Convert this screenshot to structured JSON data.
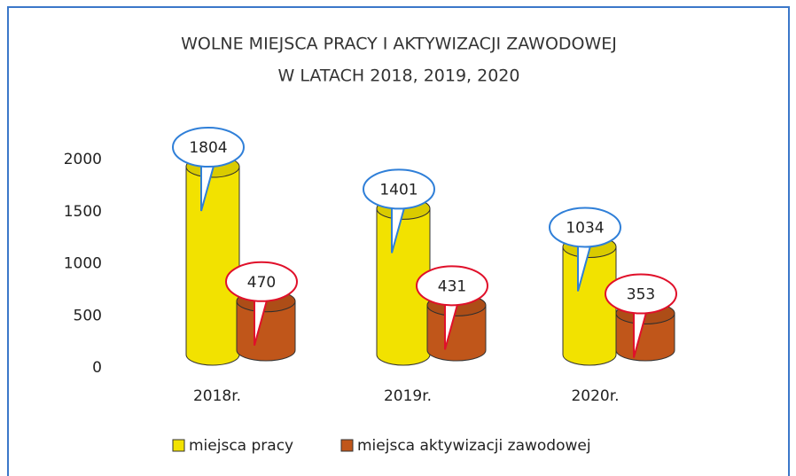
{
  "chart_data": {
    "type": "bar",
    "title": [
      "WOLNE MIEJSCA PRACY I AKTYWIZACJI ZAWODOWEJ",
      "W LATACH 2018, 2019, 2020"
    ],
    "categories": [
      "2018r.",
      "2019r.",
      "2020r."
    ],
    "series": [
      {
        "name": "miejsca pracy",
        "color": "#f2e200",
        "label_color": "#2f7fd8",
        "values": [
          1804,
          1401,
          1034
        ]
      },
      {
        "name": "miejsca aktywizacji zawodowej",
        "color": "#c0561a",
        "label_color": "#e0102a",
        "values": [
          470,
          431,
          353
        ]
      }
    ],
    "ylim": [
      0,
      2000
    ],
    "yticks": [
      0,
      500,
      1000,
      1500,
      2000
    ],
    "grid": false
  }
}
